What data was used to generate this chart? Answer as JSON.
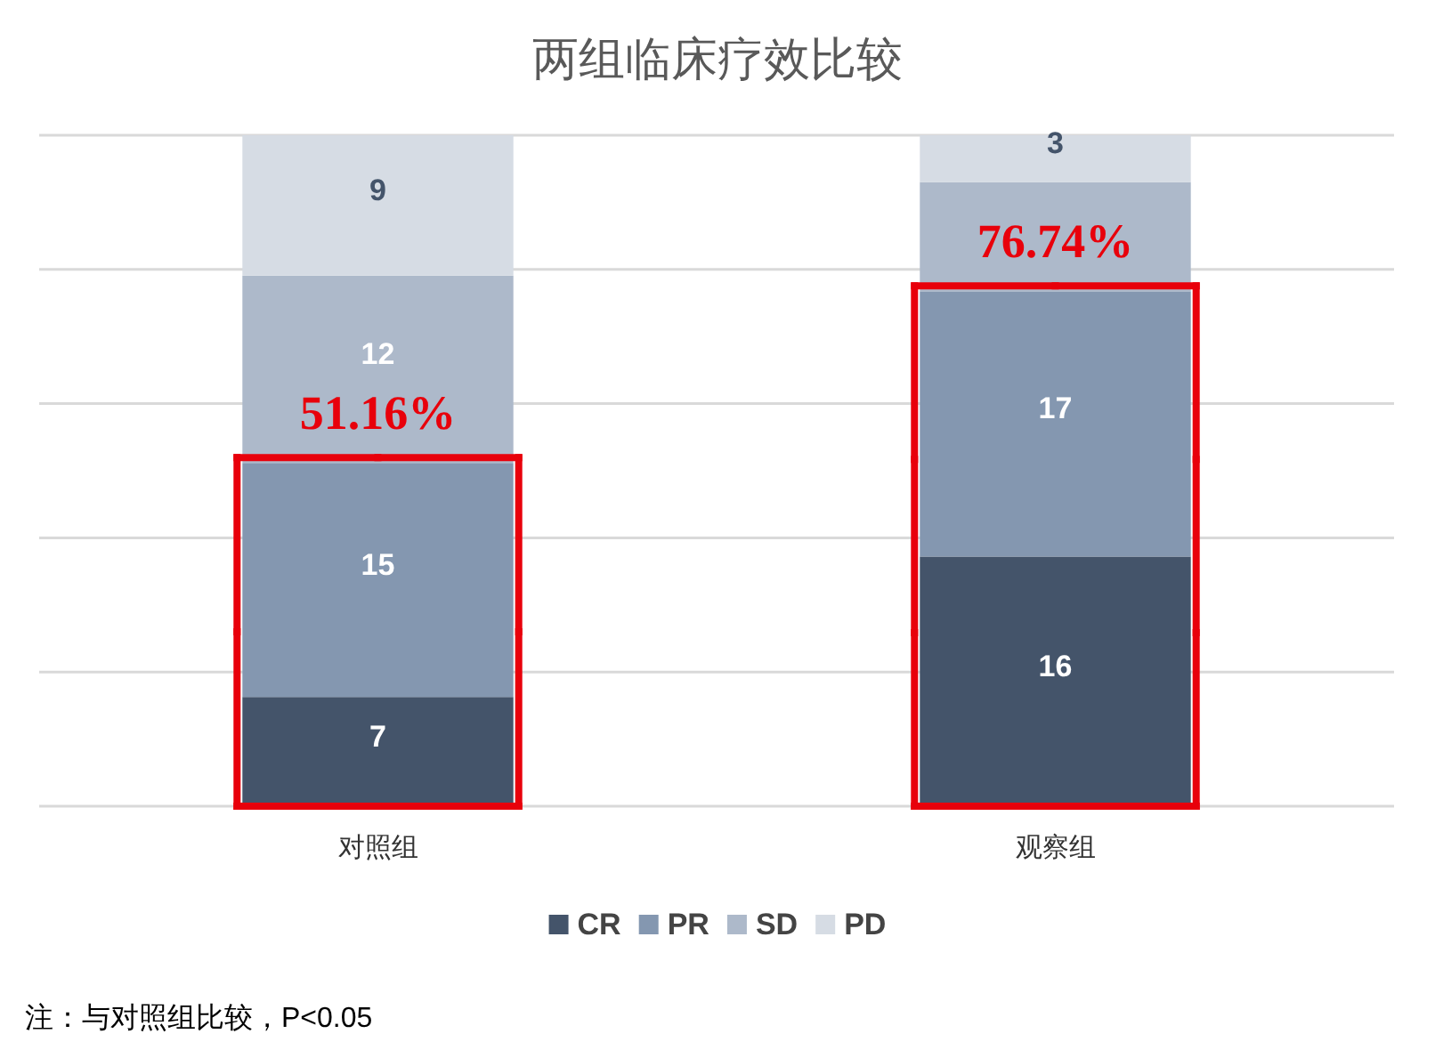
{
  "chart_data": {
    "type": "bar",
    "stacked": true,
    "title": "两组临床疗效比较",
    "categories": [
      "对照组",
      "观察组"
    ],
    "series": [
      {
        "name": "CR",
        "color": "#44546a",
        "values": [
          7,
          16
        ],
        "value_labels": [
          "7",
          "16"
        ]
      },
      {
        "name": "PR",
        "color": "#8497b0",
        "values": [
          15,
          17
        ],
        "value_labels": [
          "15",
          "17"
        ]
      },
      {
        "name": "SD",
        "color": "#adb9ca",
        "values": [
          12,
          7
        ],
        "value_labels": [
          "12",
          null
        ]
      },
      {
        "name": "PD",
        "color": "#d6dce4",
        "values": [
          9,
          3
        ],
        "value_labels": [
          "9",
          "3"
        ]
      }
    ],
    "ylim": [
      0,
      43
    ],
    "yticks": [
      {
        "value": 0,
        "label": null
      },
      {
        "value": 8.6,
        "label": null
      },
      {
        "value": 17.2,
        "label": null
      },
      {
        "value": 25.8,
        "label": null
      },
      {
        "value": 34.4,
        "label": null
      },
      {
        "value": 43,
        "label": null
      }
    ],
    "grid": "y",
    "tick_labels": "x",
    "legend": "bottom",
    "annotations": [
      "51.16%",
      "76.74%",
      "注：与对照组比较，P<0.05"
    ]
  }
}
